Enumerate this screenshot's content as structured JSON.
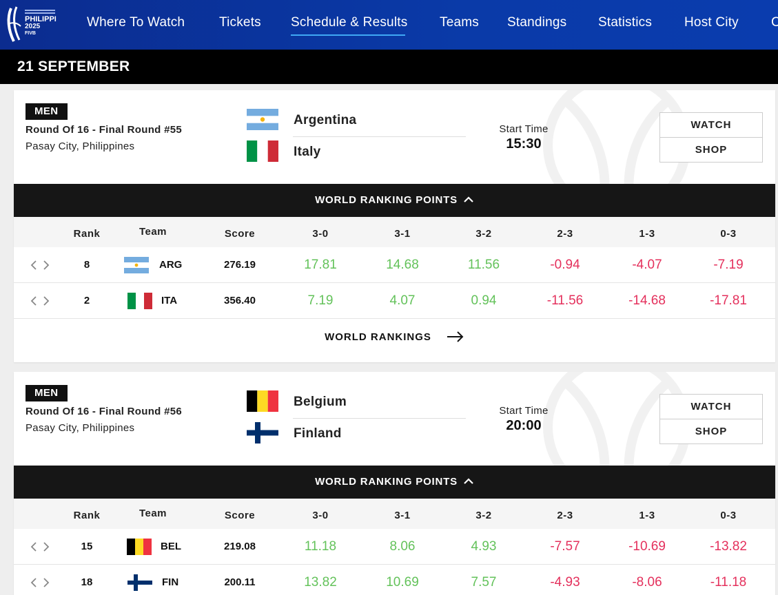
{
  "nav": {
    "logo_text": "VOLLEYBALL MEN'S WORLD CHAMPIONSHIP PHILIPPINES 2025 FIVB",
    "items": [
      "Where To Watch",
      "Tickets",
      "Schedule & Results",
      "Teams",
      "Standings",
      "Statistics",
      "Host City",
      "C"
    ],
    "active": "Schedule & Results"
  },
  "date_header": "21 SEPTEMBER",
  "matches": [
    {
      "category": "MEN",
      "round": "Round Of 16 - Final Round #55",
      "venue": "Pasay City, Philippines",
      "team1": "Argentina",
      "team2": "Italy",
      "start_label": "Start Time",
      "start_time": "15:30",
      "watch_label": "WATCH",
      "shop_label": "SHOP",
      "wrp_label": "WORLD RANKING POINTS",
      "headers": {
        "rank": "Rank",
        "team": "Team",
        "score": "Score",
        "s30": "3-0",
        "s31": "3-1",
        "s32": "3-2",
        "s23": "2-3",
        "s13": "1-3",
        "s03": "0-3"
      },
      "rows": [
        {
          "rank": "8",
          "code": "ARG",
          "score": "276.19",
          "p": [
            "17.81",
            "14.68",
            "11.56",
            "-0.94",
            "-4.07",
            "-7.19"
          ]
        },
        {
          "rank": "2",
          "code": "ITA",
          "score": "356.40",
          "p": [
            "7.19",
            "4.07",
            "0.94",
            "-11.56",
            "-14.68",
            "-17.81"
          ]
        }
      ],
      "wr_link": "WORLD RANKINGS"
    },
    {
      "category": "MEN",
      "round": "Round Of 16 - Final Round #56",
      "venue": "Pasay City, Philippines",
      "team1": "Belgium",
      "team2": "Finland",
      "start_label": "Start Time",
      "start_time": "20:00",
      "watch_label": "WATCH",
      "shop_label": "SHOP",
      "wrp_label": "WORLD RANKING POINTS",
      "headers": {
        "rank": "Rank",
        "team": "Team",
        "score": "Score",
        "s30": "3-0",
        "s31": "3-1",
        "s32": "3-2",
        "s23": "2-3",
        "s13": "1-3",
        "s03": "0-3"
      },
      "rows": [
        {
          "rank": "15",
          "code": "BEL",
          "score": "219.08",
          "p": [
            "11.18",
            "8.06",
            "4.93",
            "-7.57",
            "-10.69",
            "-13.82"
          ]
        },
        {
          "rank": "18",
          "code": "FIN",
          "score": "200.11",
          "p": [
            "13.82",
            "10.69",
            "7.57",
            "-4.93",
            "-8.06",
            "-11.18"
          ]
        }
      ]
    }
  ],
  "colors": {
    "nav": "#0b2c8f",
    "positive": "#63c25a",
    "negative": "#e4305c",
    "underline": "#3fa9f5"
  }
}
